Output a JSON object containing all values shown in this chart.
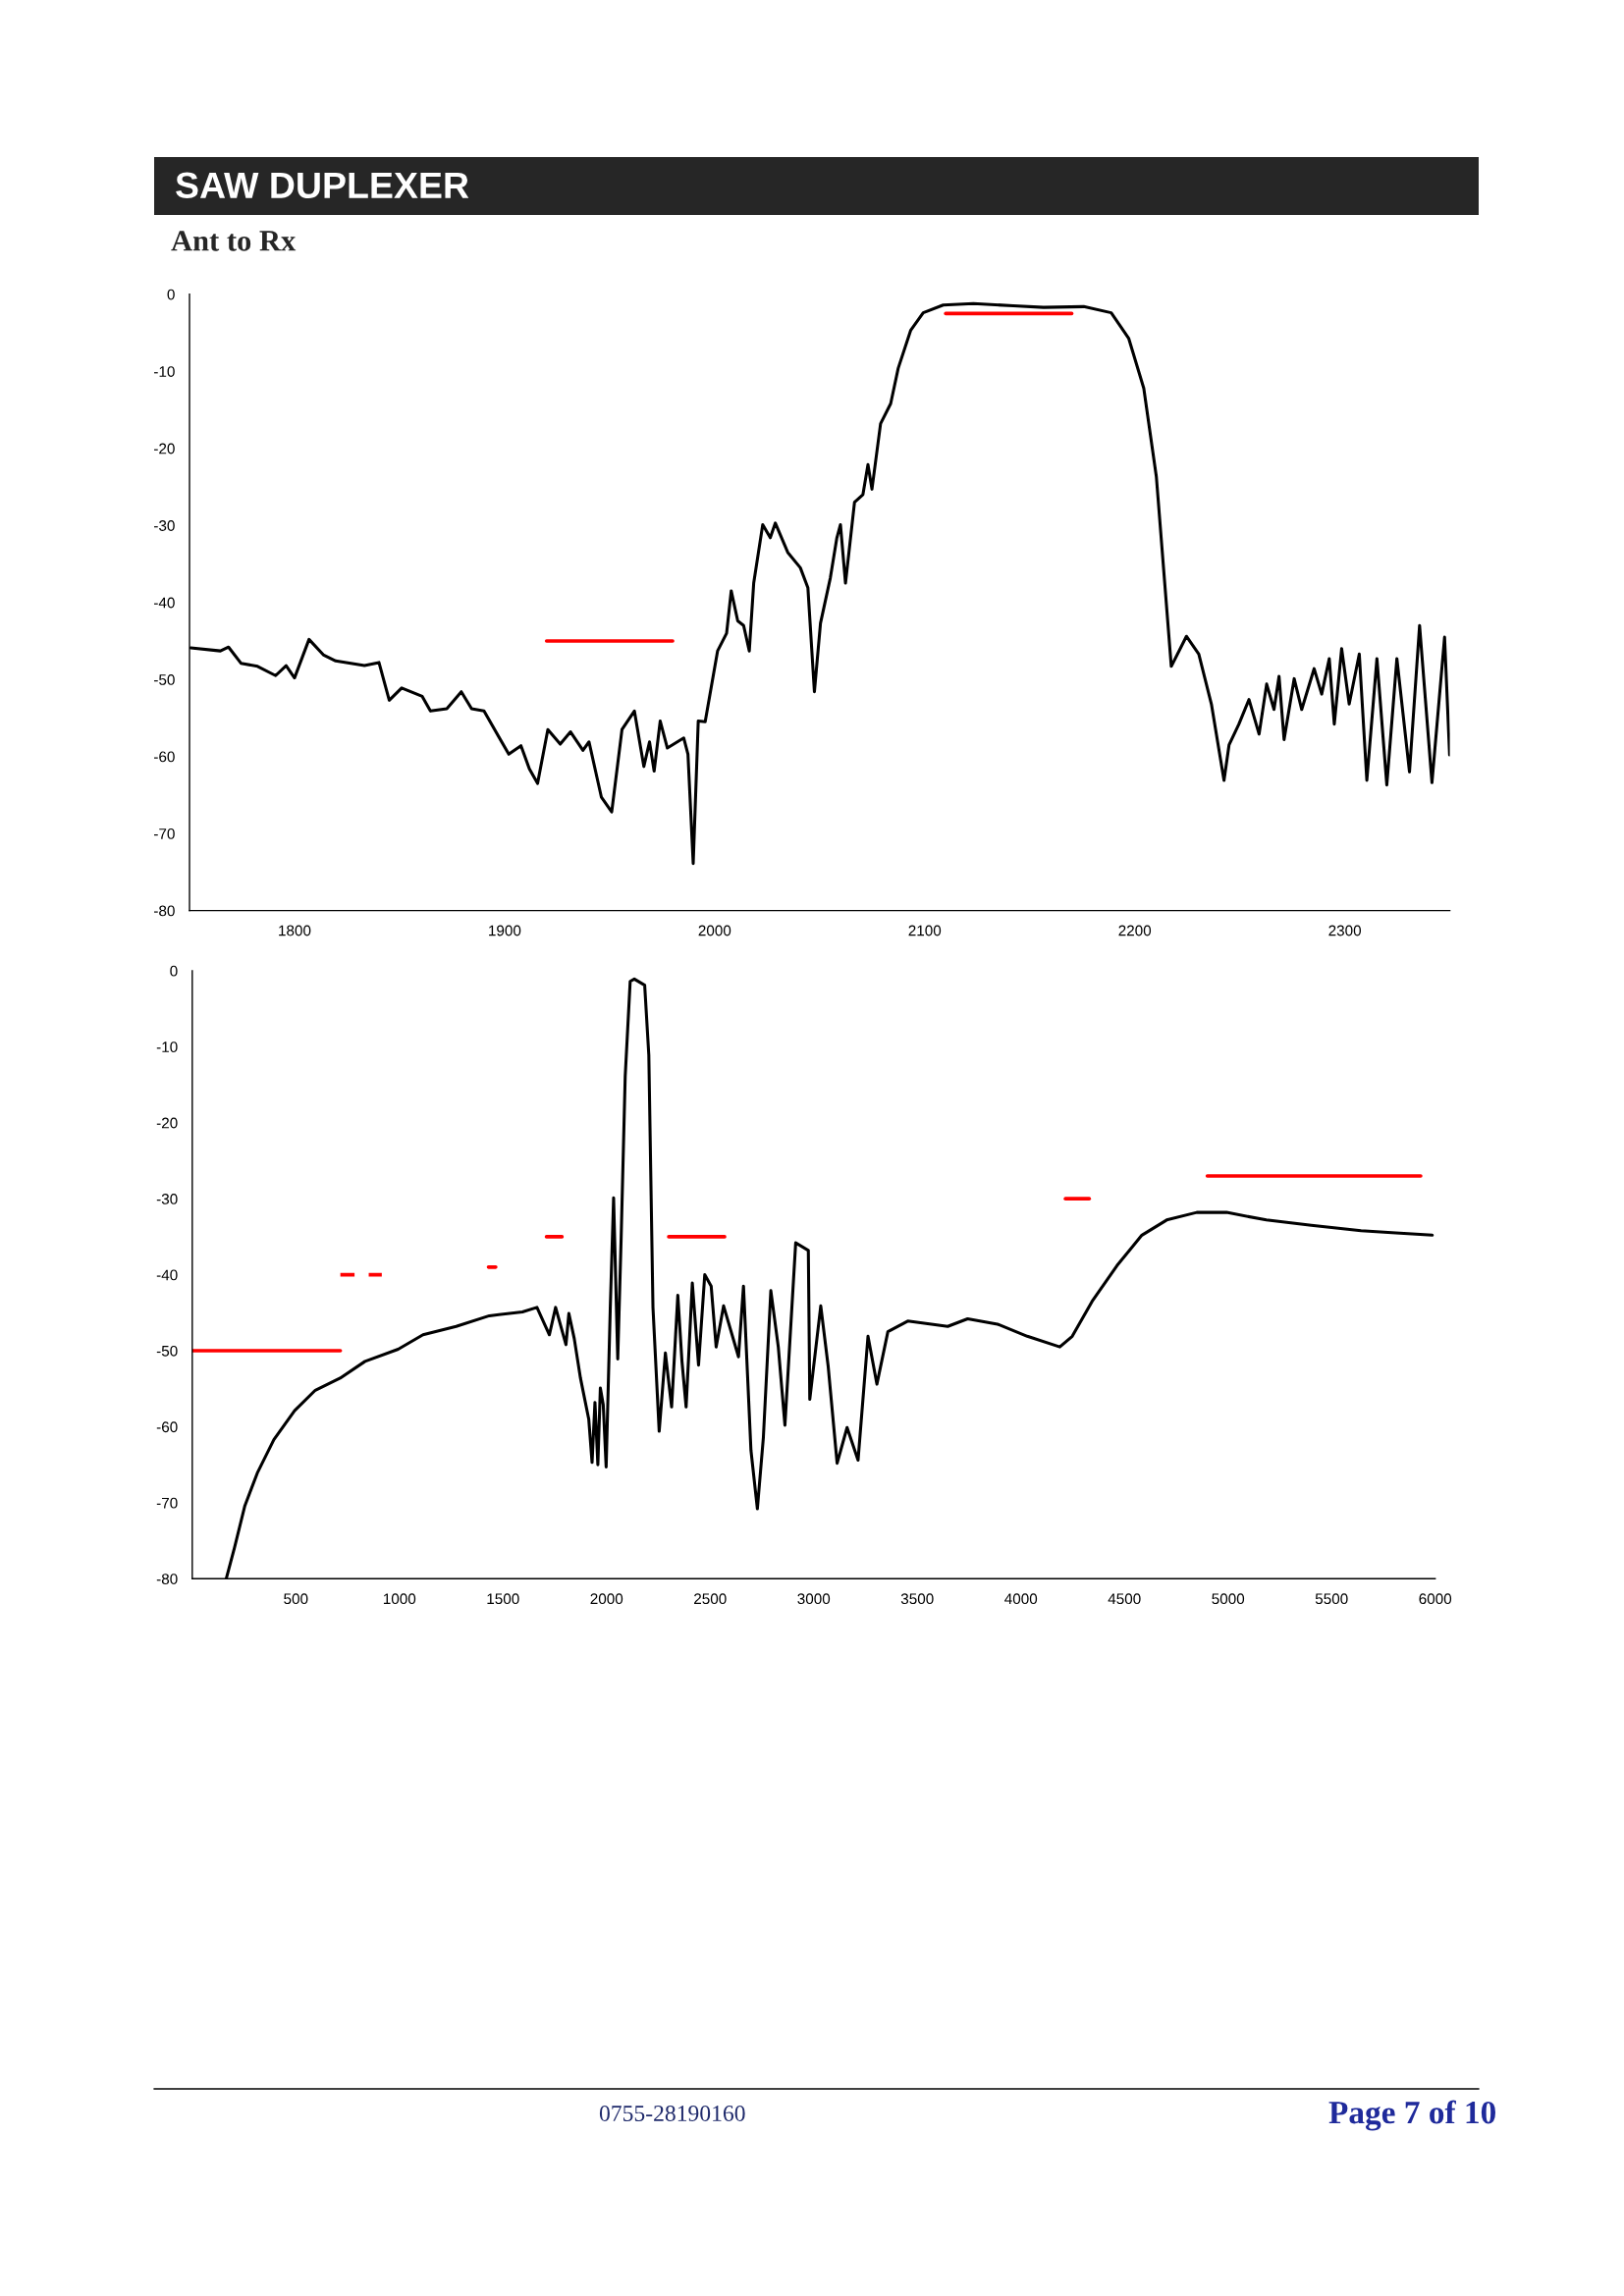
{
  "chart_data": [
    {
      "type": "line",
      "title": "SAW DUPLEXER",
      "subtitle": "Ant to Rx",
      "xlim": [
        1750,
        2350
      ],
      "ylim": [
        -80,
        0
      ],
      "xticks": [
        1800,
        1900,
        2000,
        2100,
        2200,
        2300
      ],
      "yticks": [
        0,
        -10,
        -20,
        -30,
        -40,
        -50,
        -60,
        -70,
        -80
      ],
      "grid": false,
      "line_style": "solid",
      "series": [
        {
          "color": "#000000",
          "x": [
            1750.6,
            1764.7,
            1768.6,
            1774.5,
            1782.4,
            1791,
            1796,
            1800,
            1806.9,
            1813.7,
            1819.6,
            1833.3,
            1840.2,
            1845.1,
            1851,
            1860.8,
            1864.7,
            1872.5,
            1879.4,
            1884.3,
            1890.2,
            1902,
            1907.8,
            1911.8,
            1915.7,
            1920.6,
            1926.5,
            1931.4,
            1937.3,
            1940.2,
            1946.1,
            1951,
            1955.9,
            1961.8,
            1966.3,
            1969,
            1971.2,
            1974.1,
            1977.5,
            1985.3,
            1987.3,
            1989.8,
            1992.2,
            1995.5,
            2001.4,
            2005.7,
            2007.9,
            2011,
            2013.8,
            2016.5,
            2018.6,
            2022.9,
            2026.5,
            2028.9,
            2034.8,
            2040.8,
            2044.4,
            2047.5,
            2050.4,
            2055.1,
            2058.2,
            2059.9,
            2062.3,
            2066.6,
            2070.6,
            2073,
            2074.9,
            2079,
            2083.8,
            2087.4,
            2093.3,
            2099.3,
            2108.8,
            2123.2,
            2142.2,
            2156.6,
            2175.7,
            2188.8,
            2197.1,
            2204.3,
            2210.3,
            2217.4,
            2224.6,
            2230.5,
            2236.5,
            2242.5,
            2244.9,
            2249.6,
            2254.4,
            2259.2,
            2262.8,
            2266.3,
            2268.7,
            2271.1,
            2275.9,
            2279.5,
            2285.4,
            2289,
            2292.6,
            2295,
            2298.5,
            2302.1,
            2306.9,
            2310.5,
            2315.3,
            2320,
            2324.8,
            2330.8,
            2335.6,
            2341.5,
            2347.5,
            2349.9
          ],
          "values": [
            -45.9,
            -46.3,
            -45.8,
            -47.9,
            -48.3,
            -49.5,
            -48.2,
            -49.8,
            -44.8,
            -46.8,
            -47.6,
            -48.2,
            -47.8,
            -52.7,
            -51.1,
            -52.2,
            -54.1,
            -53.8,
            -51.6,
            -53.8,
            -54.1,
            -59.7,
            -58.6,
            -61.6,
            -63.5,
            -56.5,
            -58.4,
            -56.8,
            -59.2,
            -58.1,
            -65.3,
            -67.2,
            -56.5,
            -54.1,
            -61.3,
            -58.1,
            -61.9,
            -55.4,
            -58.9,
            -57.6,
            -59.7,
            -73.9,
            -55.4,
            -55.5,
            -46.3,
            -44,
            -38.5,
            -42.4,
            -43,
            -46.3,
            -37.5,
            -29.9,
            -31.6,
            -29.7,
            -33.5,
            -35.5,
            -38.1,
            -51.6,
            -42.7,
            -36.8,
            -31.6,
            -29.9,
            -37.5,
            -27,
            -26,
            -22.1,
            -25.3,
            -16.8,
            -14.2,
            -9.6,
            -4.7,
            -2.4,
            -1.4,
            -1.2,
            -1.5,
            -1.7,
            -1.6,
            -2.4,
            -5.7,
            -12.2,
            -23.7,
            -48.3,
            -44.4,
            -46.7,
            -53.2,
            -63.1,
            -58.5,
            -55.8,
            -52.6,
            -57.1,
            -50.6,
            -53.9,
            -49.6,
            -57.8,
            -49.9,
            -53.9,
            -48.6,
            -51.9,
            -47.3,
            -55.8,
            -46,
            -53.2,
            -46.7,
            -63.1,
            -47.3,
            -63.7,
            -47.3,
            -62,
            -43,
            -63.4,
            -44.5,
            -59.8
          ]
        },
        {
          "color": "#ff0000",
          "x": [
            1920,
            1980
          ],
          "values": [
            -45,
            -45
          ]
        },
        {
          "color": "#ff0000",
          "x": [
            2110,
            2170
          ],
          "values": [
            -2.5,
            -2.5
          ]
        }
      ]
    },
    {
      "type": "line",
      "xlim": [
        0,
        6000
      ],
      "ylim": [
        -80,
        0
      ],
      "xticks": [
        500,
        1000,
        1500,
        2000,
        2500,
        3000,
        3500,
        4000,
        4500,
        5000,
        5500,
        6000
      ],
      "yticks": [
        0,
        -10,
        -20,
        -30,
        -40,
        -50,
        -60,
        -70,
        -80
      ],
      "grid": false,
      "line_style": "solid",
      "annotations": [
        "0755-28190160",
        "Page 7 of 10"
      ],
      "series": [
        {
          "color": "#000000",
          "x": [
            164,
            204,
            254,
            314,
            394,
            494,
            594,
            714,
            834,
            994,
            1114,
            1274,
            1434,
            1594,
            1664,
            1724,
            1754,
            1804,
            1818,
            1844,
            1874,
            1914,
            1930,
            1944,
            1958,
            1970,
            1984,
            1998,
            2018,
            2034,
            2054,
            2070,
            2090,
            2114,
            2134,
            2184,
            2204,
            2224,
            2254,
            2284,
            2314,
            2344,
            2364,
            2384,
            2414,
            2444,
            2474,
            2505,
            2529,
            2565,
            2637,
            2661,
            2697,
            2728,
            2757,
            2793,
            2829,
            2861,
            2913,
            2974,
            2981,
            3034,
            3070,
            3113,
            3161,
            3214,
            3262,
            3305,
            3358,
            3454,
            3647,
            3743,
            3887,
            4031,
            4188,
            4248,
            4344,
            4464,
            4584,
            4704,
            4849,
            4993,
            5185,
            5402,
            5642,
            5810,
            5986
          ],
          "values": [
            -80,
            -75.9,
            -70.4,
            -66.1,
            -61.7,
            -57.9,
            -55.2,
            -53.6,
            -51.4,
            -49.8,
            -47.9,
            -46.8,
            -45.4,
            -44.9,
            -44.3,
            -47.9,
            -44.3,
            -49.2,
            -45.1,
            -48.4,
            -53.6,
            -59,
            -64.7,
            -56.8,
            -65,
            -54.9,
            -57.1,
            -65.3,
            -44.3,
            -29.9,
            -51.1,
            -35.6,
            -13.9,
            -1.4,
            -1.1,
            -1.9,
            -11.1,
            -44.3,
            -60.6,
            -50.3,
            -57.4,
            -42.7,
            -51.4,
            -57.4,
            -41.1,
            -51.9,
            -40,
            -41.5,
            -49.5,
            -44.1,
            -50.8,
            -41.5,
            -63.1,
            -70.8,
            -61.4,
            -42.1,
            -49.5,
            -59.8,
            -35.8,
            -36.8,
            -56.4,
            -44.1,
            -52.1,
            -64.8,
            -60.1,
            -64.4,
            -48.1,
            -54.4,
            -47.5,
            -46.1,
            -46.8,
            -45.8,
            -46.5,
            -48.1,
            -49.5,
            -48.1,
            -43.5,
            -38.8,
            -34.8,
            -32.8,
            -31.8,
            -31.8,
            -32.8,
            -33.5,
            -34.2,
            -34.5,
            -34.8
          ]
        },
        {
          "color": "#ff0000",
          "x": [
            0,
            715
          ],
          "values": [
            -50,
            -50
          ]
        },
        {
          "color": "#ff0000",
          "x": [
            715,
            915
          ],
          "values": [
            -40,
            -40
          ],
          "line_style": "dashed"
        },
        {
          "color": "#ff0000",
          "x": [
            1430,
            1465
          ],
          "values": [
            -39,
            -39
          ]
        },
        {
          "color": "#ff0000",
          "x": [
            1710,
            1785
          ],
          "values": [
            -35,
            -35
          ]
        },
        {
          "color": "#ff0000",
          "x": [
            2300,
            2570
          ],
          "values": [
            -35,
            -35
          ]
        },
        {
          "color": "#ff0000",
          "x": [
            4215,
            4330
          ],
          "values": [
            -30,
            -30
          ]
        },
        {
          "color": "#ff0000",
          "x": [
            4900,
            5930
          ],
          "values": [
            -27,
            -27
          ]
        }
      ]
    }
  ]
}
